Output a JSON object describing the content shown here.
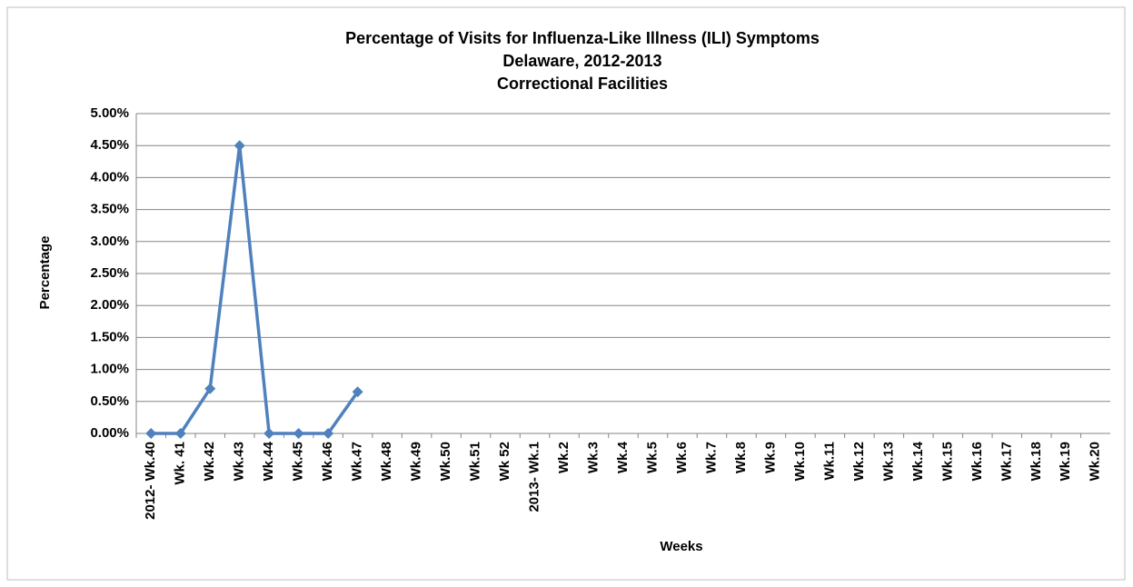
{
  "chart_data": {
    "type": "line",
    "title": [
      "Percentage of Visits for Influenza-Like Illness (ILI) Symptoms",
      "Delaware, 2012-2013",
      "Correctional Facilities"
    ],
    "y_label": "Percentage",
    "x_label": "Weeks",
    "categories": [
      "2012- Wk.40",
      "Wk. 41",
      "Wk.42",
      "Wk.43",
      "Wk.44",
      "Wk.45",
      "Wk.46",
      "Wk.47",
      "Wk.48",
      "Wk.49",
      "Wk.50",
      "Wk.51",
      "Wk 52",
      "2013- Wk.1",
      "Wk.2",
      "Wk.3",
      "Wk.4",
      "Wk.5",
      "Wk.6",
      "Wk.7",
      "Wk.8",
      "Wk.9",
      "Wk.10",
      "Wk.11",
      "Wk.12",
      "Wk.13",
      "Wk.14",
      "Wk.15",
      "Wk.16",
      "Wk.17",
      "Wk.18",
      "Wk.19",
      "Wk.20"
    ],
    "series": [
      {
        "name": "Percentage",
        "color": "#4f81bd",
        "values": [
          0,
          0,
          0.7,
          4.5,
          0,
          0,
          0,
          0.65,
          null,
          null,
          null,
          null,
          null,
          null,
          null,
          null,
          null,
          null,
          null,
          null,
          null,
          null,
          null,
          null,
          null,
          null,
          null,
          null,
          null,
          null,
          null,
          null,
          null
        ]
      }
    ],
    "ylim": [
      0,
      5
    ],
    "yticks": [
      {
        "value": 0,
        "label": "0.00%"
      },
      {
        "value": 0.5,
        "label": "0.50%"
      },
      {
        "value": 1,
        "label": "1.00%"
      },
      {
        "value": 1.5,
        "label": "1.50%"
      },
      {
        "value": 2,
        "label": "2.00%"
      },
      {
        "value": 2.5,
        "label": "2.50%"
      },
      {
        "value": 3,
        "label": "3.00%"
      },
      {
        "value": 3.5,
        "label": "3.50%"
      },
      {
        "value": 4,
        "label": "4.00%"
      },
      {
        "value": 4.5,
        "label": "4.50%"
      },
      {
        "value": 5,
        "label": "5.00%"
      }
    ],
    "grid": true
  }
}
